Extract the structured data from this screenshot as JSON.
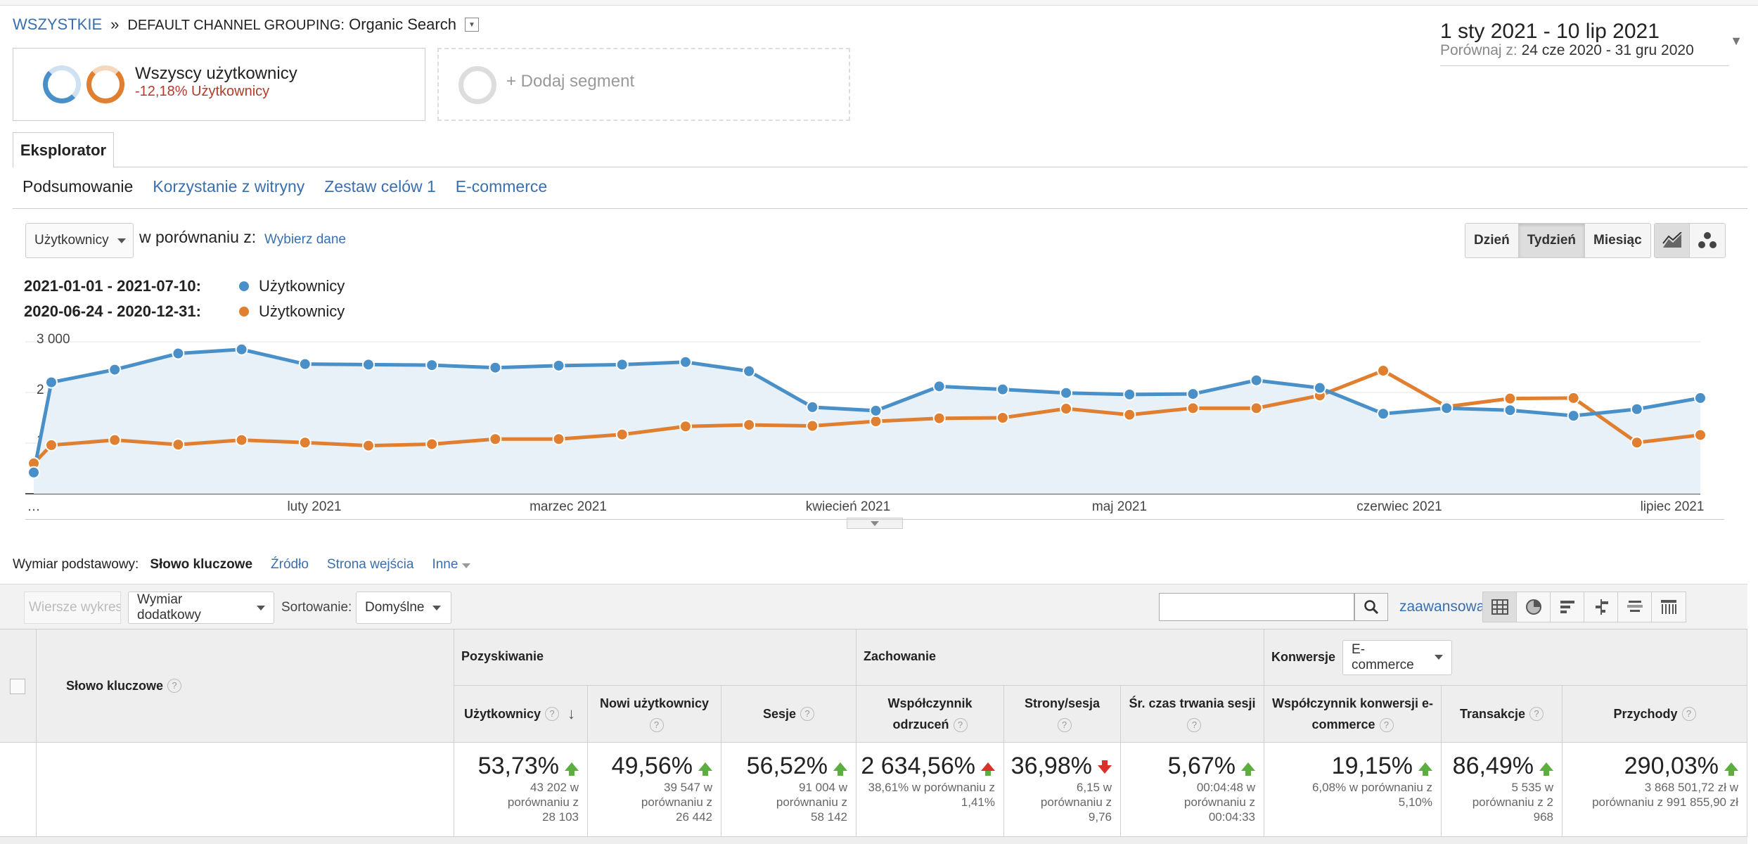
{
  "breadcrumb": {
    "all": "WSZYSTKIE",
    "separator": "»",
    "grouping_label": "DEFAULT CHANNEL GROUPING:",
    "grouping_value": "Organic Search"
  },
  "date_range": {
    "main": "1 sty 2021 - 10 lip 2021",
    "compare_label": "Porównaj z:",
    "compare_value": "24 cze 2020 - 31 gru 2020"
  },
  "segments": {
    "current_title": "Wszyscy użytkownicy",
    "current_sub": "-12,18% Użytkownicy",
    "add_label": "+ Dodaj segment"
  },
  "tabs": {
    "explorer": "Eksplorator"
  },
  "subnav": [
    "Podsumowanie",
    "Korzystanie z witryny",
    "Zestaw celów 1",
    "E-commerce"
  ],
  "controls": {
    "metric": "Użytkownicy",
    "compare_text": "w porównaniu z:",
    "pick_data": "Wybierz dane",
    "periods": [
      "Dzień",
      "Tydzień",
      "Miesiąc"
    ],
    "active_period": "Tydzień"
  },
  "legend": [
    {
      "range": "2021-01-01 - 2021-07-10:",
      "label": "Użytkownicy",
      "color": "#4a90c8"
    },
    {
      "range": "2020-06-24 - 2020-12-31:",
      "label": "Użytkownicy",
      "color": "#e07f2f"
    }
  ],
  "chart_data": {
    "type": "line",
    "y_ticks": [
      "3 000",
      "2 000",
      "1 000"
    ],
    "ylim": [
      0,
      3000
    ],
    "x_labels": [
      "…",
      "luty 2021",
      "marzec 2021",
      "kwiecień 2021",
      "maj 2021",
      "czerwiec 2021",
      "lipiec 2021"
    ],
    "series": [
      {
        "name": "2021-01-01 - 2021-07-10",
        "color": "#4a90c8",
        "values": [
          420,
          2200,
          2450,
          2770,
          2850,
          2560,
          2550,
          2540,
          2490,
          2530,
          2550,
          2600,
          2420,
          1710,
          1640,
          2120,
          2060,
          1990,
          1960,
          1970,
          2240,
          2090,
          1580,
          1690,
          1650,
          1540,
          1670,
          1890
        ]
      },
      {
        "name": "2020-06-24 - 2020-12-31",
        "color": "#e07f2f",
        "values": [
          600,
          960,
          1060,
          970,
          1060,
          1010,
          950,
          980,
          1080,
          1080,
          1170,
          1330,
          1360,
          1340,
          1430,
          1490,
          1500,
          1680,
          1560,
          1690,
          1690,
          1940,
          2430,
          1720,
          1880,
          1890,
          1010,
          1160
        ]
      }
    ]
  },
  "dimensions": {
    "label": "Wymiar podstawowy:",
    "items": [
      "Słowo kluczowe",
      "Źródło",
      "Strona wejścia",
      "Inne"
    ]
  },
  "toolbar": {
    "rows_button": "Wiersze wykresu",
    "secondary_dim": "Wymiar dodatkowy",
    "sort_label": "Sortowanie:",
    "sort_value": "Domyślne",
    "advanced": "zaawansowane"
  },
  "table": {
    "dimension_header": "Słowo kluczowe",
    "groups": {
      "acquisition": "Pozyskiwanie",
      "behavior": "Zachowanie",
      "conversions": "Konwersje",
      "conversions_select": "E-commerce"
    },
    "columns": [
      {
        "header": "Użytkownicy",
        "pct": "53,73%",
        "dir": "up",
        "sub": "43 202 w porównaniu z 28 103"
      },
      {
        "header": "Nowi użytkownicy",
        "pct": "49,56%",
        "dir": "up",
        "sub": "39 547 w porównaniu z 26 442"
      },
      {
        "header": "Sesje",
        "pct": "56,52%",
        "dir": "up",
        "sub": "91 004 w porównaniu z 58 142"
      },
      {
        "header": "Współczynnik odrzuceń",
        "pct": "2 634,56%",
        "dir": "up-red",
        "sub": "38,61% w porównaniu z 1,41%"
      },
      {
        "header": "Strony/sesja",
        "pct": "36,98%",
        "dir": "down",
        "sub": "6,15 w porównaniu z 9,76"
      },
      {
        "header": "Śr. czas trwania sesji",
        "pct": "5,67%",
        "dir": "up",
        "sub": "00:04:48 w porównaniu z 00:04:33"
      },
      {
        "header": "Współczynnik konwersji e-commerce",
        "pct": "19,15%",
        "dir": "up",
        "sub": "6,08% w porównaniu z 5,10%"
      },
      {
        "header": "Transakcje",
        "pct": "86,49%",
        "dir": "up",
        "sub": "5 535 w porównaniu z 2 968"
      },
      {
        "header": "Przychody",
        "pct": "290,03%",
        "dir": "up",
        "sub": "3 868 501,72 zł w porównaniu z 991 855,90 zł"
      }
    ]
  }
}
